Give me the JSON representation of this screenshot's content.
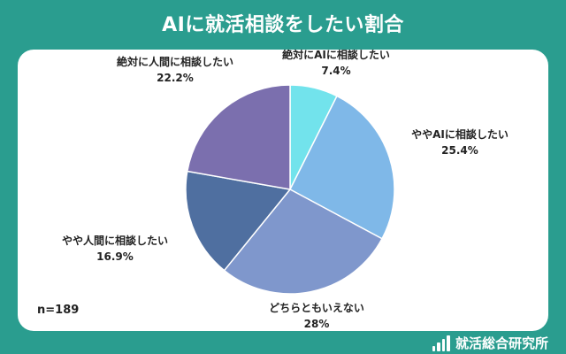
{
  "header": {
    "title": "AIに就活相談をしたい割合"
  },
  "footer": {
    "sample_size": "n=189",
    "brand": "就活総合研究所"
  },
  "colors": {
    "background": "#2a9d8f",
    "panel": "#ffffff",
    "slice_colors": [
      "#72e3ec",
      "#7fb8e8",
      "#7f97cc",
      "#4f6fa0",
      "#7b6fae"
    ]
  },
  "chart_data": {
    "type": "pie",
    "title": "AIに就活相談をしたい割合",
    "slices": [
      {
        "label": "絶対にAIに相談したい",
        "value": 7.4,
        "display": "7.4%"
      },
      {
        "label": "ややAIに相談したい",
        "value": 25.4,
        "display": "25.4%"
      },
      {
        "label": "どちらともいえない",
        "value": 28,
        "display": "28%"
      },
      {
        "label": "やや人間に相談したい",
        "value": 16.9,
        "display": "16.9%"
      },
      {
        "label": "絶対に人間に相談したい",
        "value": 22.2,
        "display": "22.2%"
      }
    ]
  }
}
